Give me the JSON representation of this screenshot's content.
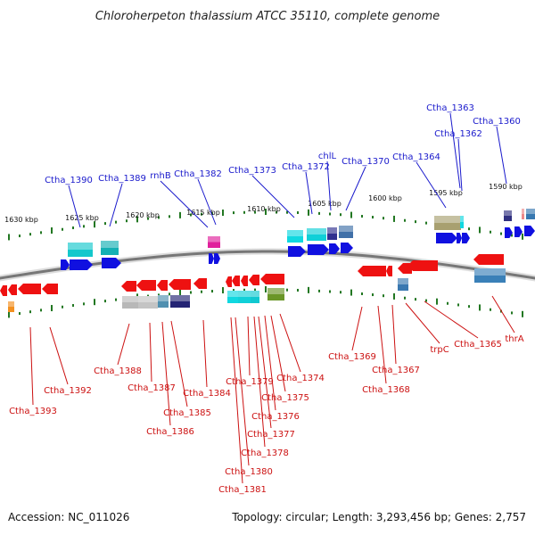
{
  "title": "Chloroherpeton thalassium ATCC 35110, complete genome",
  "footer": {
    "accession": "Accession: NC_011026",
    "summary": "Topology: circular; Length: 3,293,456 bp; Genes: 2,757"
  },
  "colors": {
    "forward_label": "#1a1acc",
    "reverse_label": "#cc1111",
    "backbone": "#777777",
    "tick": "#227722",
    "forward_arrow": "#1010e0",
    "reverse_arrow": "#ee1111"
  },
  "scale_ticks": [
    "1630 kbp",
    "1625 kbp",
    "1620 kbp",
    "1615 kbp",
    "1610 kbp",
    "1605 kbp",
    "1600 kbp",
    "1595 kbp",
    "1590 kbp"
  ],
  "forward_genes": [
    "Ctha_1390",
    "Ctha_1389",
    "rnhB",
    "Ctha_1382",
    "Ctha_1373",
    "Ctha_1372",
    "chlL",
    "Ctha_1370",
    "Ctha_1364",
    "Ctha_1363",
    "Ctha_1362",
    "Ctha_1360"
  ],
  "reverse_genes": [
    "Ctha_1393",
    "Ctha_1392",
    "Ctha_1388",
    "Ctha_1387",
    "Ctha_1386",
    "Ctha_1385",
    "Ctha_1384",
    "Ctha_1381",
    "Ctha_1380",
    "Ctha_1378",
    "Ctha_1377",
    "Ctha_1376",
    "Ctha_1375",
    "Ctha_1379",
    "Ctha_1374",
    "Ctha_1369",
    "Ctha_1368",
    "Ctha_1367",
    "trpC",
    "Ctha_1365",
    "thrA"
  ]
}
